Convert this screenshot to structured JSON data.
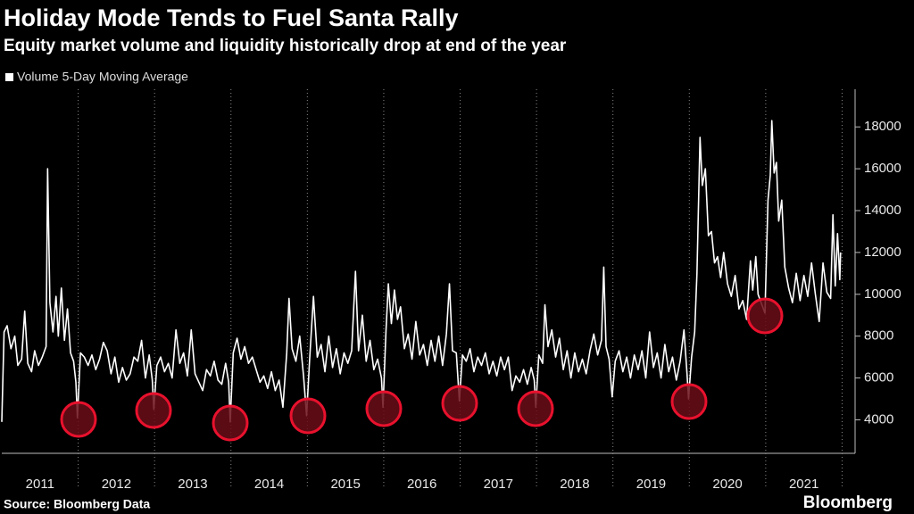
{
  "chart_data": {
    "type": "line",
    "title": "Holiday Mode Tends to Fuel Santa Rally",
    "subtitle": "Equity market volume and liquidity historically drop at end of the year",
    "source": "Source: Bloomberg Data",
    "brand": "Bloomberg",
    "y_axis_side": "right",
    "xlim": [
      2011,
      2022.17
    ],
    "ylim": [
      2400,
      19800
    ],
    "yticks": [
      4000,
      6000,
      8000,
      10000,
      12000,
      14000,
      16000,
      18000
    ],
    "xticks": [
      {
        "value": 2011.5,
        "label": "2011"
      },
      {
        "value": 2012.5,
        "label": "2012"
      },
      {
        "value": 2013.5,
        "label": "2013"
      },
      {
        "value": 2014.5,
        "label": "2014"
      },
      {
        "value": 2015.5,
        "label": "2015"
      },
      {
        "value": 2016.5,
        "label": "2016"
      },
      {
        "value": 2017.5,
        "label": "2017"
      },
      {
        "value": 2018.5,
        "label": "2018"
      },
      {
        "value": 2019.5,
        "label": "2019"
      },
      {
        "value": 2020.5,
        "label": "2020"
      },
      {
        "value": 2021.5,
        "label": "2021"
      }
    ],
    "x": [
      2011.0,
      2011.03,
      2011.07,
      2011.12,
      2011.17,
      2011.21,
      2011.26,
      2011.3,
      2011.34,
      2011.39,
      2011.43,
      2011.48,
      2011.53,
      2011.58,
      2011.6,
      2011.63,
      2011.67,
      2011.71,
      2011.74,
      2011.78,
      2011.82,
      2011.86,
      2011.9,
      2011.94,
      2011.97,
      2011.99,
      2012.03,
      2012.08,
      2012.13,
      2012.18,
      2012.23,
      2012.28,
      2012.33,
      2012.38,
      2012.43,
      2012.48,
      2012.53,
      2012.58,
      2012.63,
      2012.68,
      2012.73,
      2012.78,
      2012.83,
      2012.88,
      2012.93,
      2012.97,
      2012.99,
      2013.03,
      2013.08,
      2013.13,
      2013.18,
      2013.23,
      2013.28,
      2013.33,
      2013.38,
      2013.43,
      2013.48,
      2013.53,
      2013.58,
      2013.63,
      2013.68,
      2013.73,
      2013.78,
      2013.83,
      2013.88,
      2013.93,
      2013.97,
      2013.99,
      2014.03,
      2014.08,
      2014.13,
      2014.18,
      2014.23,
      2014.28,
      2014.33,
      2014.38,
      2014.43,
      2014.48,
      2014.53,
      2014.58,
      2014.63,
      2014.68,
      2014.73,
      2014.76,
      2014.8,
      2014.85,
      2014.9,
      2014.95,
      2014.99,
      2015.03,
      2015.08,
      2015.13,
      2015.18,
      2015.23,
      2015.28,
      2015.33,
      2015.38,
      2015.43,
      2015.48,
      2015.53,
      2015.58,
      2015.63,
      2015.67,
      2015.72,
      2015.77,
      2015.82,
      2015.87,
      2015.92,
      2015.97,
      2015.99,
      2016.03,
      2016.06,
      2016.1,
      2016.14,
      2016.18,
      2016.22,
      2016.27,
      2016.32,
      2016.37,
      2016.42,
      2016.47,
      2016.52,
      2016.57,
      2016.62,
      2016.67,
      2016.72,
      2016.77,
      2016.82,
      2016.86,
      2016.9,
      2016.95,
      2016.99,
      2017.03,
      2017.08,
      2017.13,
      2017.18,
      2017.23,
      2017.28,
      2017.33,
      2017.38,
      2017.43,
      2017.48,
      2017.53,
      2017.58,
      2017.63,
      2017.68,
      2017.73,
      2017.78,
      2017.83,
      2017.88,
      2017.93,
      2017.97,
      2017.99,
      2018.03,
      2018.08,
      2018.11,
      2018.15,
      2018.2,
      2018.25,
      2018.3,
      2018.35,
      2018.4,
      2018.45,
      2018.5,
      2018.55,
      2018.6,
      2018.65,
      2018.7,
      2018.75,
      2018.8,
      2018.85,
      2018.88,
      2018.91,
      2018.95,
      2018.99,
      2019.03,
      2019.08,
      2019.13,
      2019.18,
      2019.23,
      2019.28,
      2019.33,
      2019.38,
      2019.43,
      2019.48,
      2019.53,
      2019.58,
      2019.63,
      2019.68,
      2019.73,
      2019.78,
      2019.83,
      2019.88,
      2019.93,
      2019.97,
      2019.99,
      2020.03,
      2020.07,
      2020.1,
      2020.14,
      2020.17,
      2020.21,
      2020.25,
      2020.29,
      2020.33,
      2020.37,
      2020.41,
      2020.45,
      2020.5,
      2020.55,
      2020.6,
      2020.65,
      2020.7,
      2020.75,
      2020.8,
      2020.83,
      2020.87,
      2020.9,
      2020.95,
      2020.99,
      2021.03,
      2021.06,
      2021.08,
      2021.11,
      2021.14,
      2021.17,
      2021.21,
      2021.25,
      2021.3,
      2021.35,
      2021.4,
      2021.45,
      2021.5,
      2021.55,
      2021.6,
      2021.65,
      2021.7,
      2021.75,
      2021.8,
      2021.85,
      2021.88,
      2021.91,
      2021.94,
      2021.97,
      2021.98
    ],
    "series": [
      {
        "name": "Volume 5-Day Moving Average",
        "color": "#ffffff",
        "values": [
          3900,
          8200,
          8500,
          7400,
          8000,
          6600,
          6900,
          9200,
          6700,
          6300,
          7300,
          6600,
          7000,
          7500,
          16000,
          9600,
          8200,
          9900,
          8000,
          10300,
          7800,
          9300,
          7200,
          6800,
          5800,
          4100,
          7200,
          7000,
          6600,
          7100,
          6400,
          6900,
          7700,
          7300,
          6200,
          7000,
          5800,
          6500,
          5900,
          6200,
          7000,
          6800,
          7800,
          6000,
          7100,
          5900,
          4500,
          6600,
          7000,
          6300,
          6700,
          6000,
          8300,
          6700,
          7200,
          6100,
          8300,
          6200,
          5800,
          5400,
          6400,
          6100,
          6800,
          5900,
          5700,
          6700,
          5800,
          3900,
          7200,
          7900,
          6900,
          7500,
          6700,
          7000,
          6400,
          5800,
          6100,
          5500,
          6300,
          5400,
          5900,
          4600,
          7200,
          9800,
          7400,
          6800,
          8000,
          6100,
          4200,
          6900,
          9900,
          7000,
          7600,
          6300,
          8000,
          6500,
          7400,
          6200,
          7200,
          6700,
          7300,
          11100,
          7300,
          9000,
          6800,
          7800,
          6400,
          6900,
          6000,
          4600,
          8300,
          10500,
          8600,
          10200,
          8800,
          9400,
          7400,
          8100,
          6900,
          8700,
          7100,
          7600,
          6600,
          7800,
          6800,
          8000,
          6600,
          8100,
          10500,
          7300,
          7200,
          4900,
          7100,
          6800,
          7400,
          6300,
          7000,
          6600,
          7200,
          6200,
          6800,
          6100,
          7000,
          6400,
          7000,
          5400,
          6100,
          5800,
          6400,
          5700,
          6500,
          5900,
          4600,
          7100,
          6700,
          9500,
          7500,
          8300,
          7000,
          7900,
          6400,
          7300,
          6000,
          7200,
          6300,
          6900,
          6200,
          7300,
          8100,
          7100,
          7800,
          11300,
          7500,
          6900,
          5100,
          6800,
          7300,
          6300,
          7000,
          6000,
          7100,
          6400,
          7300,
          6000,
          8200,
          6500,
          7200,
          6000,
          7600,
          6300,
          7000,
          5900,
          6800,
          8300,
          6200,
          5000,
          7000,
          8200,
          11000,
          17500,
          15200,
          16000,
          12800,
          13000,
          11500,
          11800,
          10800,
          12000,
          10500,
          9900,
          10900,
          9300,
          9700,
          8800,
          11600,
          10200,
          11800,
          10000,
          9500,
          9100,
          14500,
          15700,
          18300,
          15800,
          16300,
          13500,
          14500,
          11300,
          10300,
          9600,
          11000,
          9700,
          10900,
          9900,
          11500,
          10000,
          8700,
          11500,
          10100,
          9800,
          13800,
          10400,
          12900,
          10700,
          12000
        ]
      }
    ]
  }
}
